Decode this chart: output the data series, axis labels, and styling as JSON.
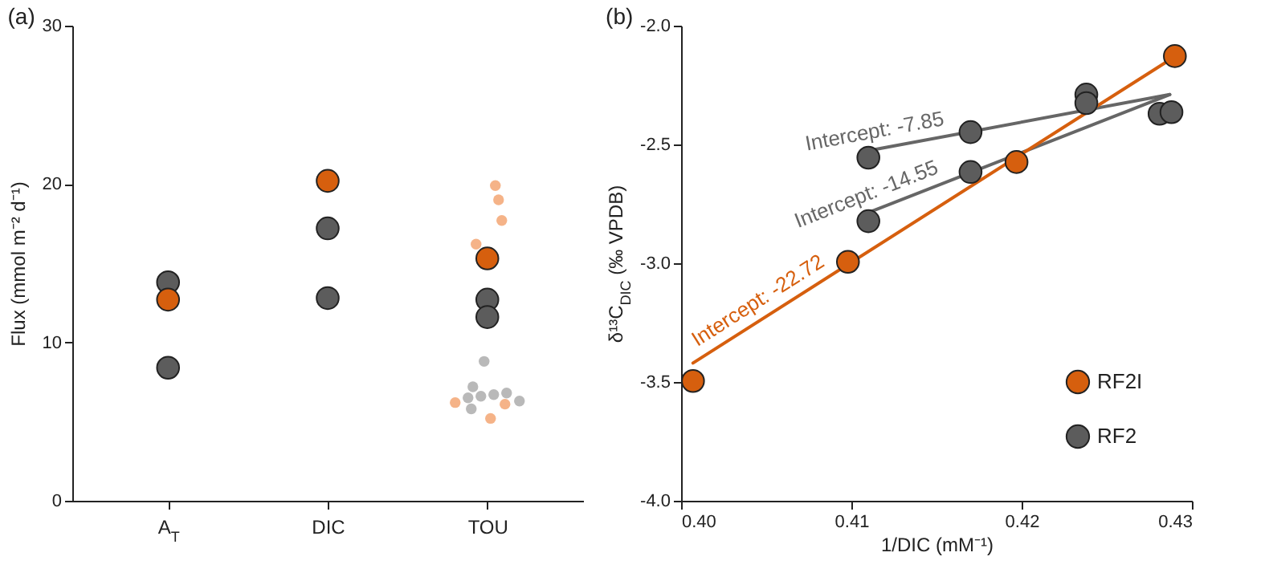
{
  "chart_data": [
    {
      "type": "scatter",
      "title": "(a)",
      "ylabel": "Flux (mmol m⁻² d⁻¹)",
      "categories": [
        "A$_{T}$",
        "DIC",
        "TOU"
      ],
      "ylim": [
        0,
        30
      ],
      "yticks": [
        0,
        10,
        20,
        30
      ],
      "marker": "circle",
      "series": [
        {
          "color": "#f2a06a",
          "x": [
            "TOU",
            "TOU",
            "TOU",
            "TOU",
            "TOU",
            "TOU",
            "TOU"
          ],
          "values": [
            19.9,
            19.0,
            17.7,
            16.2,
            6.2,
            6.1,
            5.2
          ]
        },
        {
          "color": "#a8a8a8",
          "x": [
            "TOU",
            "TOU",
            "TOU",
            "TOU",
            "TOU",
            "TOU",
            "TOU",
            "TOU"
          ],
          "values": [
            8.8,
            7.2,
            6.8,
            6.7,
            6.6,
            6.5,
            6.3,
            5.8
          ]
        },
        {
          "color": "#5c5c5c",
          "x": [
            "A$_{T}$",
            "A$_{T}$",
            "DIC",
            "DIC",
            "TOU",
            "TOU"
          ],
          "values": [
            13.8,
            8.4,
            17.2,
            12.8,
            12.7,
            11.6
          ]
        },
        {
          "color": "#d65f0e",
          "x": [
            "A$_{T}$",
            "DIC",
            "TOU"
          ],
          "values": [
            12.7,
            20.2,
            15.3
          ]
        }
      ]
    },
    {
      "type": "scatter",
      "title": "(b)",
      "xlabel": "1/DIC (mM⁻¹)",
      "ylabel": "δ¹³C$_{DIC}$ (‰ VPDB)",
      "xlim": [
        0.4,
        0.43
      ],
      "ylim": [
        -4.0,
        -2.0
      ],
      "xticks": [
        {
          "value": 0.4,
          "label": "0.40"
        },
        {
          "value": 0.41,
          "label": "0.41"
        },
        {
          "value": 0.42,
          "label": "0.42"
        },
        {
          "value": 0.43,
          "label": "0.43"
        }
      ],
      "yticks": [
        {
          "value": -4.0,
          "label": "-4.0"
        },
        {
          "value": -3.5,
          "label": "-3.5"
        },
        {
          "value": -3.0,
          "label": "-3.0"
        },
        {
          "value": -2.5,
          "label": "-2.5"
        },
        {
          "value": -2.0,
          "label": "-2.0"
        }
      ],
      "legend": "bottom right",
      "annotations": [
        "Intercept: -7.85",
        "Intercept: -14.55",
        "Intercept: -22.72"
      ],
      "series": [
        {
          "type": "line",
          "color": "#666666",
          "x": [
            0.411,
            0.4287
          ],
          "values": [
            -2.526,
            -2.29
          ]
        },
        {
          "type": "line",
          "color": "#666666",
          "x": [
            0.411,
            0.4287
          ],
          "values": [
            -2.787,
            -2.29
          ]
        },
        {
          "type": "line",
          "color": "#d65f0e",
          "x": [
            0.4007,
            0.429
          ],
          "values": [
            -3.42,
            -2.13
          ]
        },
        {
          "name": "RF2I",
          "marker": "circle",
          "color": "#d65f0e",
          "x": [
            0.4007,
            0.4098,
            0.4197,
            0.429
          ],
          "values": [
            -3.496,
            -2.994,
            -2.574,
            -2.128
          ]
        },
        {
          "name": "RF2",
          "marker": "circle",
          "color": "#5c5c5c",
          "x": [
            0.411,
            0.417,
            0.411,
            0.417,
            0.4238,
            0.4238,
            0.4281,
            0.4288
          ],
          "values": [
            -2.556,
            -2.448,
            -2.823,
            -2.616,
            -2.29,
            -2.326,
            -2.371,
            -2.364
          ]
        }
      ]
    }
  ]
}
